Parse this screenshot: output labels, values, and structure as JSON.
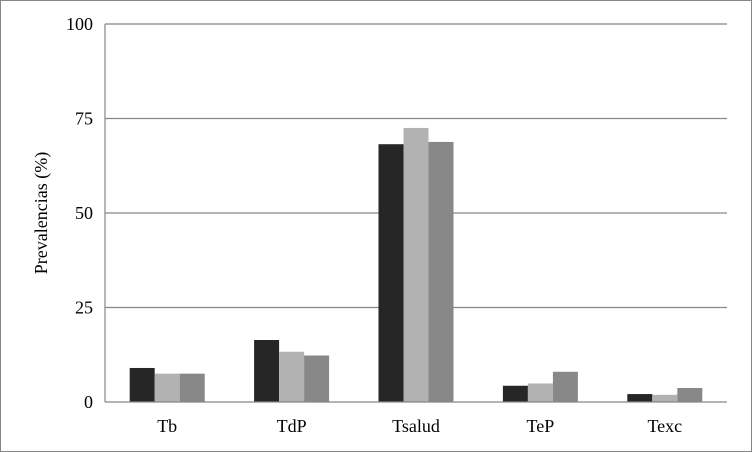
{
  "chart_data": {
    "type": "bar",
    "title": "",
    "xlabel": "",
    "ylabel": "Prevalencias (%)",
    "ylim": [
      0,
      100
    ],
    "yticks": [
      "0",
      "25",
      "50",
      "75",
      "100"
    ],
    "ytick_values": [
      0,
      25,
      50,
      75,
      100
    ],
    "grid": true,
    "legend": "none",
    "categories": [
      "Tb",
      "TdP",
      "Tsalud",
      "TeP",
      "Texc"
    ],
    "series": [
      {
        "color": "#262626",
        "values": [
          9.0,
          16.4,
          68.2,
          4.3,
          2.1
        ]
      },
      {
        "color": "#b2b2b2",
        "values": [
          7.5,
          13.3,
          72.5,
          4.9,
          1.9
        ]
      },
      {
        "color": "#888888",
        "values": [
          7.5,
          12.3,
          68.8,
          8.0,
          3.7
        ]
      }
    ]
  }
}
